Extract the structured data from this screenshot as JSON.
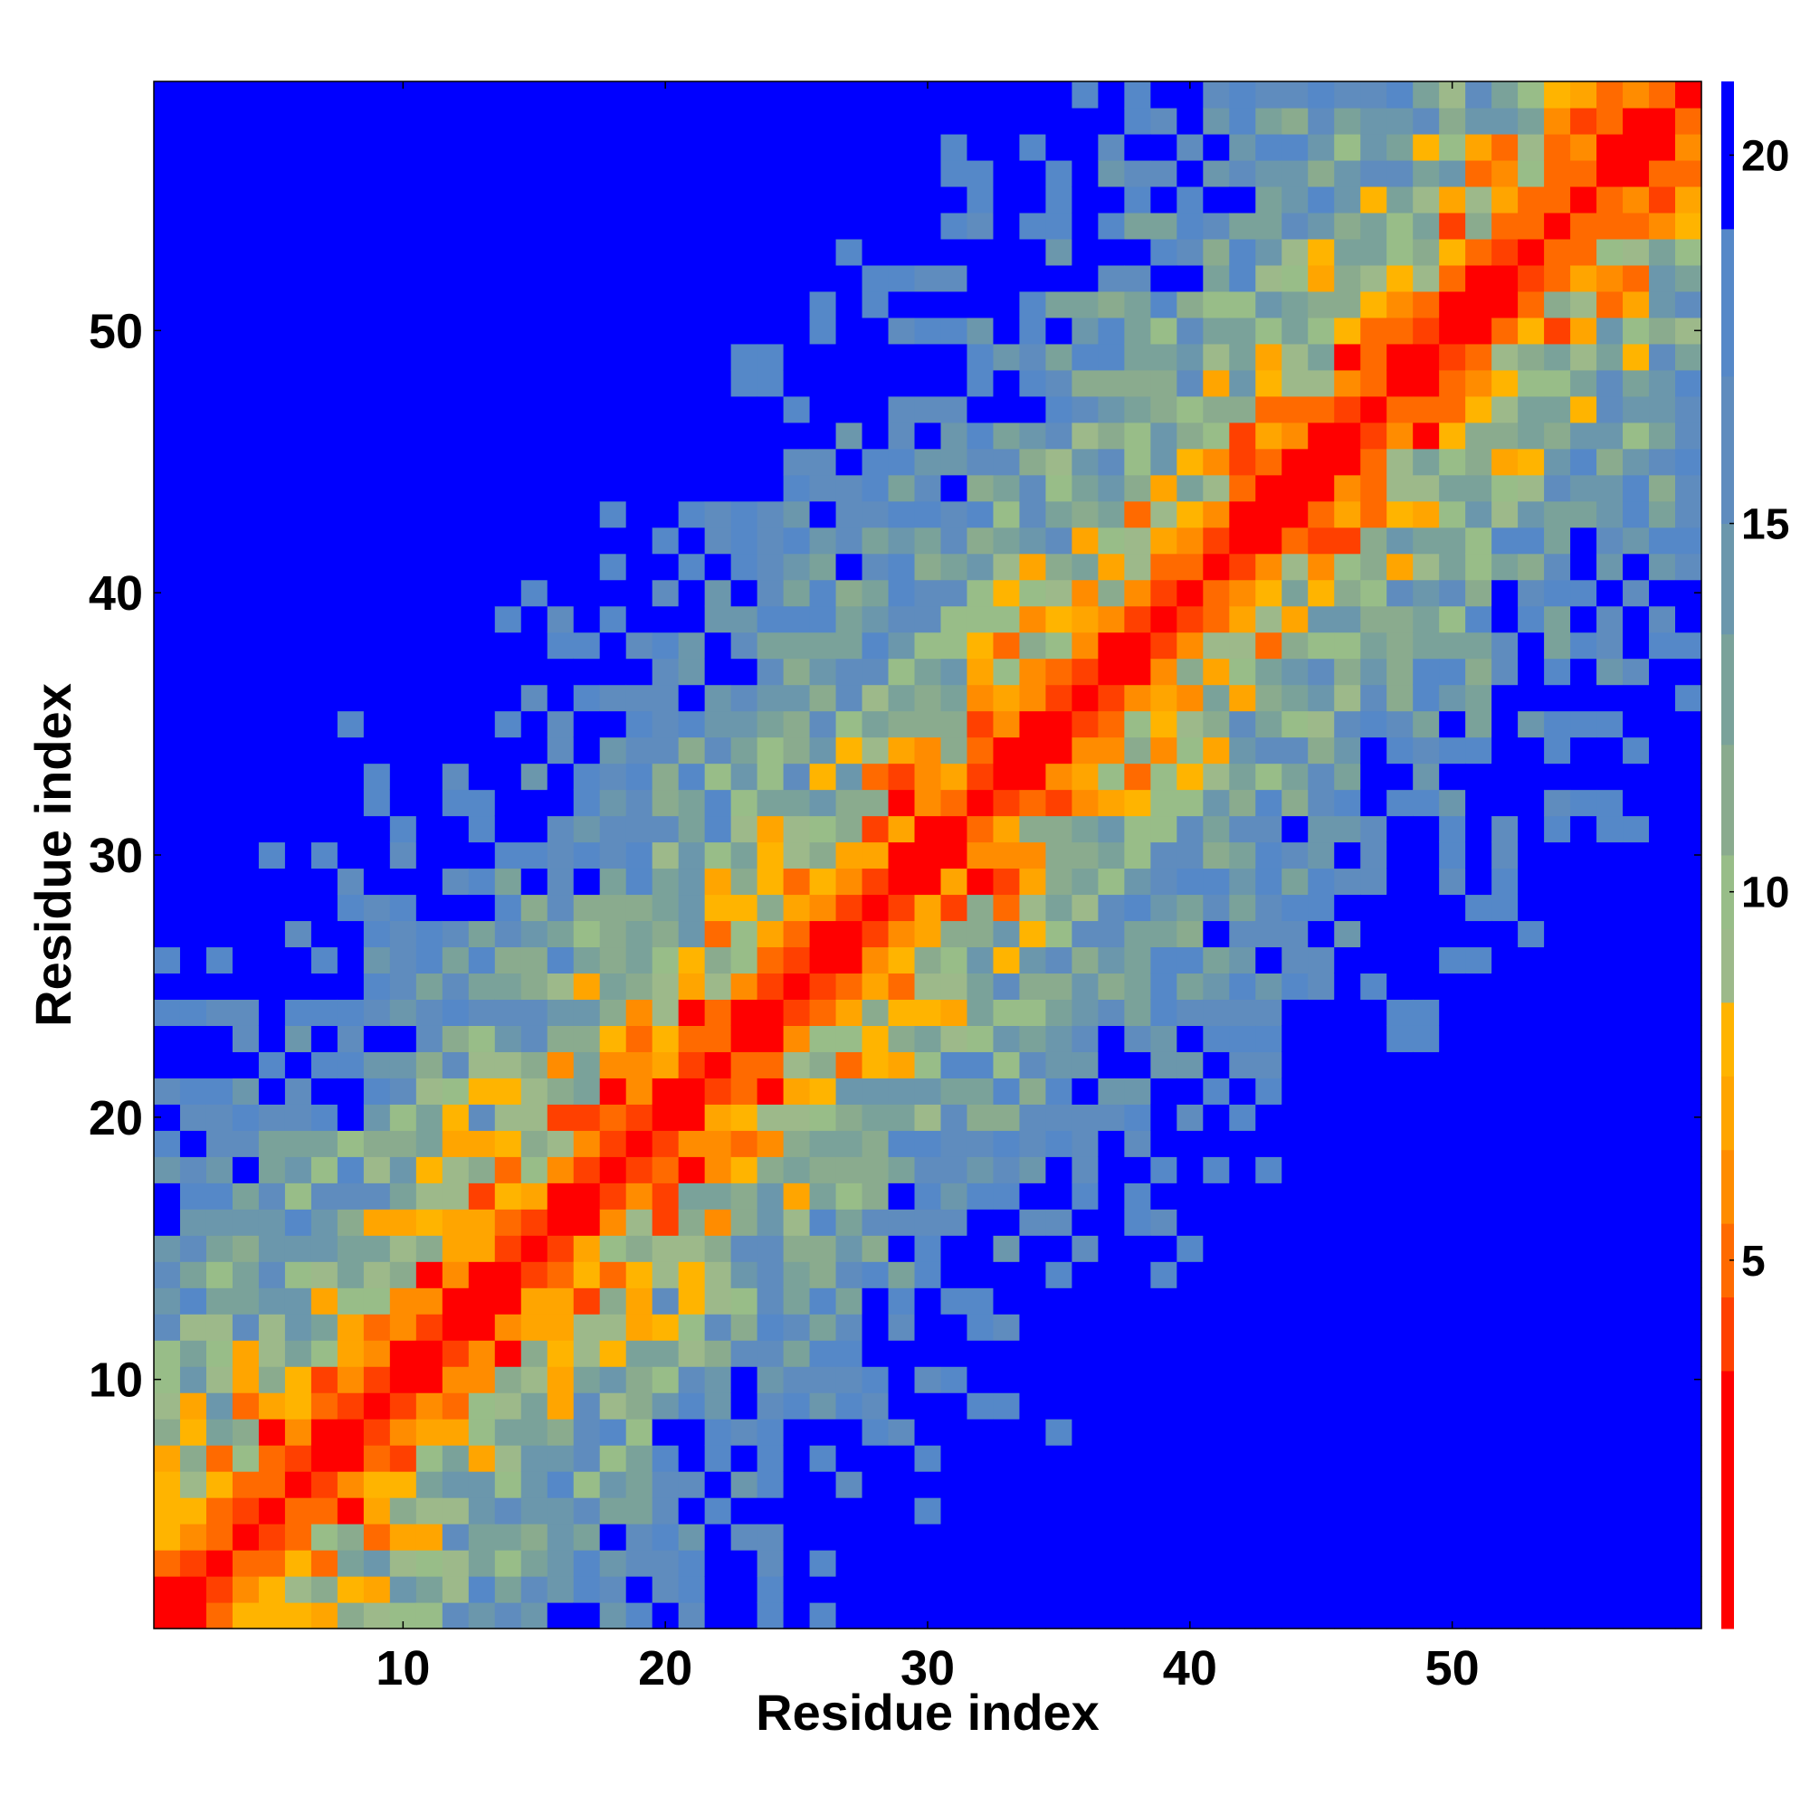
{
  "chart_data": {
    "type": "heatmap",
    "title": "",
    "xlabel": "Residue index",
    "ylabel": "Residue index",
    "n": 59,
    "xlim": [
      0.5,
      59.5
    ],
    "ylim": [
      0.5,
      59.5
    ],
    "x_ticks": [
      10,
      20,
      30,
      40,
      50
    ],
    "y_ticks": [
      10,
      20,
      30,
      40,
      50
    ],
    "colorbar": {
      "range": [
        0,
        21
      ],
      "ticks": [
        5,
        10,
        15,
        20
      ],
      "placement": "right",
      "colors": [
        {
          "max": 3.5,
          "color": "#ff0000"
        },
        {
          "max": 4.5,
          "color": "#ff4000"
        },
        {
          "max": 5.5,
          "color": "#ff6a00"
        },
        {
          "max": 6.5,
          "color": "#ff8c00"
        },
        {
          "max": 7.5,
          "color": "#ffa500"
        },
        {
          "max": 8.5,
          "color": "#ffb400"
        },
        {
          "max": 9.5,
          "color": "#9db98a"
        },
        {
          "max": 10.5,
          "color": "#98bd88"
        },
        {
          "max": 12,
          "color": "#8aab8e"
        },
        {
          "max": 13.5,
          "color": "#7aa29a"
        },
        {
          "max": 15,
          "color": "#6b97ac"
        },
        {
          "max": 17,
          "color": "#5f8cbe"
        },
        {
          "max": 19,
          "color": "#5588c8"
        },
        {
          "max": 21,
          "color": "#0000ff"
        }
      ]
    },
    "values_description": "Symmetric residue-residue distance map; values grow with |i-j|, red along the diagonal, blue far from it."
  }
}
